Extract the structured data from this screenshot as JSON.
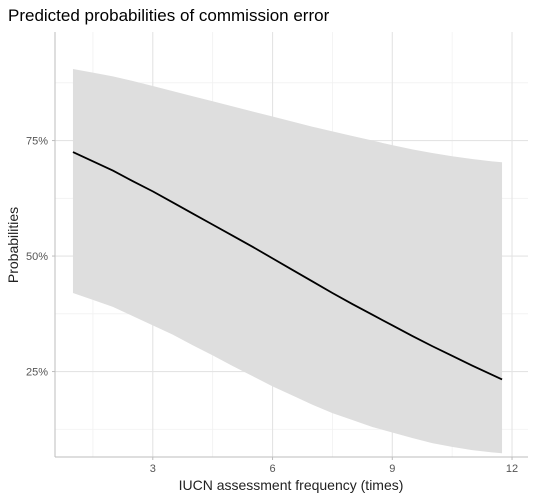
{
  "chart_data": {
    "type": "line",
    "title": "Predicted probabilities of commission error",
    "xlabel": "IUCN assessment frequency (times)",
    "ylabel": "Probabilities",
    "xlim": [
      0.55,
      12.4
    ],
    "ylim": [
      0.065,
      0.985
    ],
    "x_ticks": [
      3,
      6,
      9,
      12
    ],
    "x_tick_labels": [
      "3",
      "6",
      "9",
      "12"
    ],
    "y_ticks": [
      0.25,
      0.5,
      0.75
    ],
    "y_tick_labels": [
      "25%",
      "50%",
      "75%"
    ],
    "grid": true,
    "legend": "none",
    "series": [
      {
        "x": [
          1.0,
          1.5,
          2.0,
          2.5,
          3.0,
          3.5,
          4.0,
          4.5,
          5.0,
          5.5,
          6.0,
          6.5,
          7.0,
          7.5,
          8.0,
          8.5,
          9.0,
          9.5,
          10.0,
          10.5,
          11.0,
          11.5,
          11.75
        ],
        "y": [
          0.725,
          0.705,
          0.685,
          0.662,
          0.64,
          0.616,
          0.592,
          0.568,
          0.544,
          0.52,
          0.495,
          0.47,
          0.445,
          0.42,
          0.396,
          0.373,
          0.35,
          0.327,
          0.305,
          0.284,
          0.263,
          0.243,
          0.233
        ],
        "lower": [
          0.42,
          0.405,
          0.39,
          0.37,
          0.35,
          0.33,
          0.307,
          0.285,
          0.262,
          0.24,
          0.218,
          0.198,
          0.178,
          0.16,
          0.145,
          0.13,
          0.118,
          0.106,
          0.095,
          0.087,
          0.08,
          0.075,
          0.073
        ],
        "upper": [
          0.905,
          0.897,
          0.889,
          0.879,
          0.868,
          0.857,
          0.846,
          0.835,
          0.824,
          0.813,
          0.802,
          0.791,
          0.78,
          0.77,
          0.76,
          0.75,
          0.74,
          0.731,
          0.723,
          0.716,
          0.71,
          0.705,
          0.703
        ]
      }
    ],
    "colors": {
      "line": "#000000",
      "ribbon": "#dedede",
      "grid_major": "#e4e4e4",
      "grid_minor": "#f1f1f1",
      "axis": "#bdbdbd"
    }
  }
}
